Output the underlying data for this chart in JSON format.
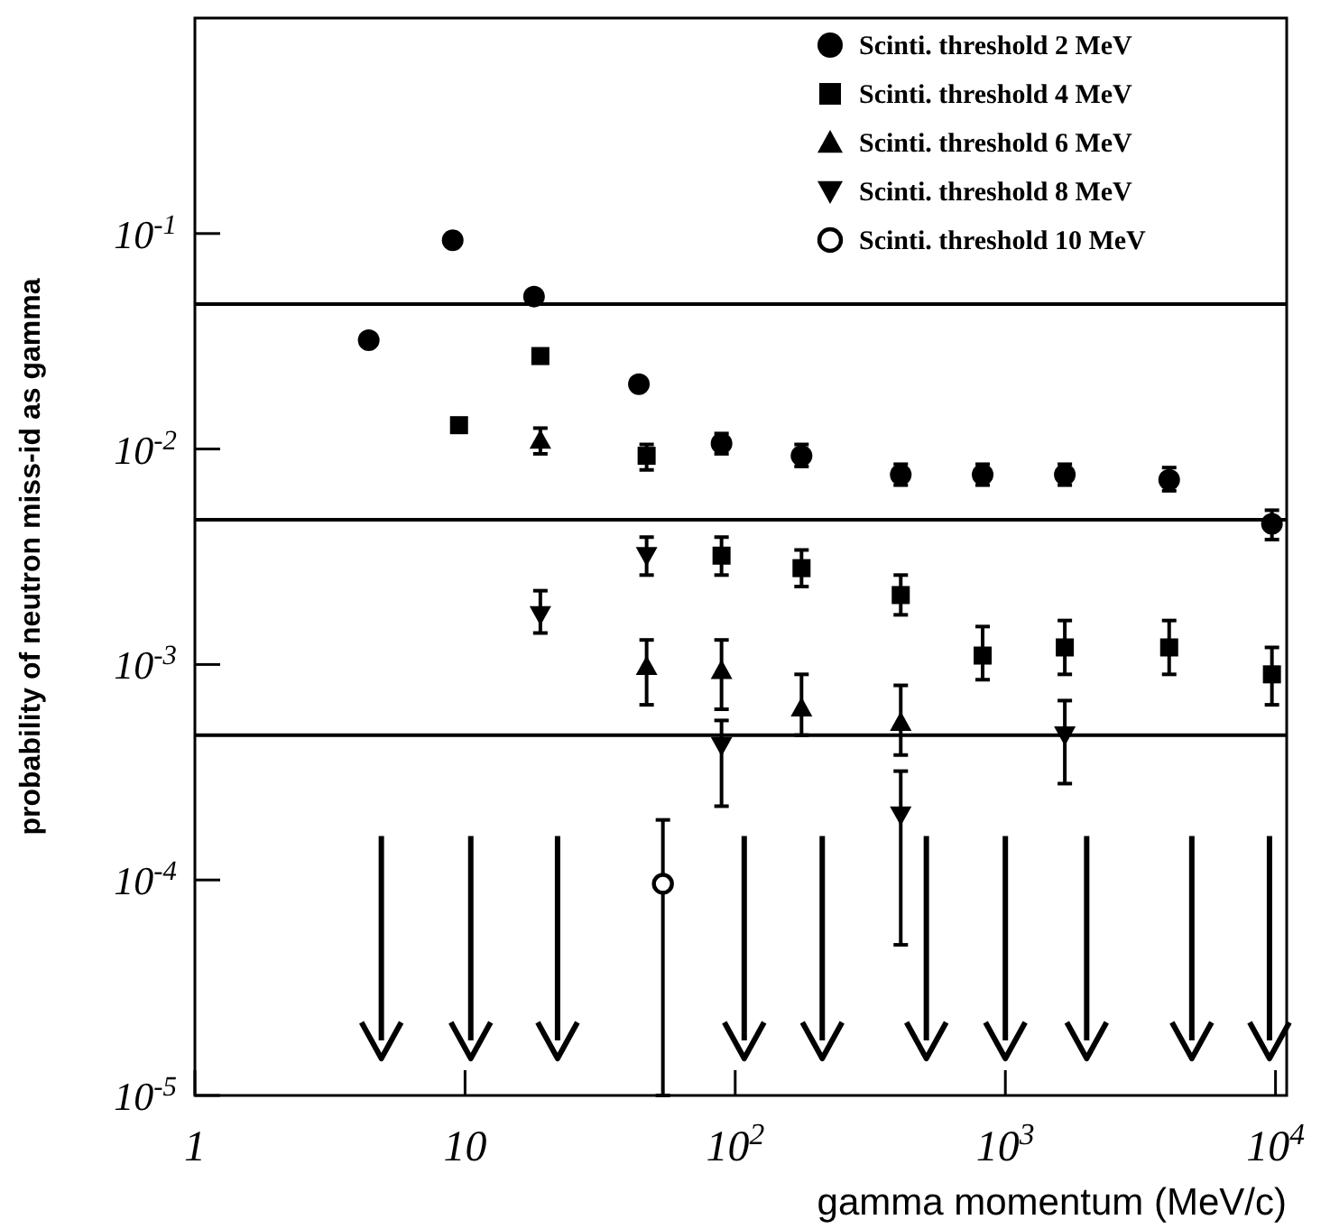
{
  "chart_data": {
    "type": "scatter",
    "xlabel": "gamma momentum (MeV/c)",
    "ylabel": "probability of neutron miss-id as gamma",
    "log": "xy",
    "xlim": [
      1,
      11000
    ],
    "ylim": [
      1e-05,
      1
    ],
    "xticks": [
      1,
      10,
      {
        "value": 100,
        "label": "10$^{2}$"
      },
      {
        "value": 1000,
        "label": "10$^{3}$"
      },
      {
        "value": 10000,
        "label": "10$^{4}$"
      }
    ],
    "yticks": [
      {
        "value": 1e-05,
        "label": "10$^{-5}$"
      },
      {
        "value": 0.0001,
        "label": "10$^{-4}$"
      },
      {
        "value": 0.001,
        "label": "10$^{-3}$"
      },
      {
        "value": 0.01,
        "label": "10$^{-2}$"
      },
      {
        "value": 0.1,
        "label": "10$^{-1}$"
      }
    ],
    "legend": "top right",
    "ref_lines": [
      {
        "axis": "y",
        "value": 0.047,
        "color": "#000000"
      },
      {
        "axis": "y",
        "value": 0.0047,
        "color": "#000000"
      },
      {
        "axis": "y",
        "value": 0.00047,
        "color": "#000000"
      }
    ],
    "series": [
      {
        "name": "Scinti. threshold 2 MeV",
        "color": "#000000",
        "marker": "circle",
        "x": [
          4.4,
          9,
          18,
          44,
          89,
          176,
          410,
          824,
          1660,
          4040,
          9700
        ],
        "values": [
          0.032,
          0.093,
          0.051,
          0.02,
          0.0106,
          0.0093,
          0.0076,
          0.0076,
          0.0076,
          0.0072,
          0.0045
        ],
        "errors": [
          null,
          null,
          null,
          null,
          [
            0.0095,
            0.0118
          ],
          [
            0.0083,
            0.0105
          ],
          [
            0.0068,
            0.0085
          ],
          [
            0.0068,
            0.0085
          ],
          [
            0.0068,
            0.0085
          ],
          [
            0.0064,
            0.0082
          ],
          [
            0.0038,
            0.0052
          ]
        ]
      },
      {
        "name": "Scinti. threshold 4 MeV",
        "color": "#000000",
        "marker": "square",
        "x": [
          9.5,
          19,
          47,
          89,
          176,
          410,
          824,
          1660,
          4040,
          9700
        ],
        "values": [
          0.0129,
          0.027,
          0.0093,
          0.0032,
          0.0028,
          0.0021,
          0.0011,
          0.0012,
          0.0012,
          0.0009
        ],
        "errors": [
          null,
          null,
          [
            0.008,
            0.0105
          ],
          [
            0.0026,
            0.0039
          ],
          [
            0.0023,
            0.0034
          ],
          [
            0.0017,
            0.0026
          ],
          [
            0.00085,
            0.0015
          ],
          [
            0.0009,
            0.0016
          ],
          [
            0.0009,
            0.0016
          ],
          [
            0.00065,
            0.0012
          ]
        ]
      },
      {
        "name": "Scinti. threshold 6 MeV",
        "color": "#000000",
        "marker": "triangle",
        "x": [
          19,
          47,
          89,
          176,
          410
        ],
        "values": [
          0.011,
          0.00098,
          0.00094,
          0.00063,
          0.00054
        ],
        "errors": [
          [
            0.0095,
            0.0125
          ],
          [
            0.00065,
            0.0013
          ],
          [
            0.00062,
            0.0013
          ],
          [
            0.00047,
            0.0009
          ],
          [
            0.00038,
            0.0008
          ]
        ]
      },
      {
        "name": "Scinti. threshold 8 MeV",
        "color": "#000000",
        "marker": "triangle-down",
        "x": [
          19,
          47,
          89,
          410,
          1660
        ],
        "values": [
          0.0017,
          0.0032,
          0.00042,
          0.0002,
          0.00047
        ],
        "errors": [
          [
            0.0014,
            0.0022
          ],
          [
            0.0026,
            0.0039
          ],
          [
            0.00022,
            0.00055
          ],
          [
            5e-05,
            0.00032
          ],
          [
            0.00028,
            0.00068
          ]
        ]
      },
      {
        "name": "Scinti. threshold 10 MeV",
        "color": "#000000",
        "marker": "circle-open",
        "x": [
          54
        ],
        "values": [
          9.6e-05
        ],
        "errors": [
          [
            1e-05,
            0.00019
          ]
        ]
      },
      {
        "color": "#000000",
        "marker": "cross",
        "x": [
          4.9,
          10.5,
          210,
          2000,
          4900
        ],
        "values": [
          1.8e-05,
          1.8e-05,
          1.8e-05,
          1.8e-05,
          1.8e-05
        ],
        "errors": [
          [
            1.8e-05,
            0.00016
          ],
          [
            1.8e-05,
            0.00016
          ],
          [
            1.8e-05,
            0.00016
          ],
          [
            1.8e-05,
            0.00016
          ],
          [
            1.8e-05,
            0.00016
          ]
        ]
      },
      {
        "color": "#000000",
        "marker": "cross",
        "x": [
          22,
          108,
          510,
          1000,
          9500
        ],
        "values": [
          1.8e-05,
          1.8e-05,
          1.8e-05,
          1.8e-05,
          1.8e-05
        ],
        "errors": [
          [
            1.8e-05,
            0.00016
          ],
          [
            1.8e-05,
            0.00016
          ],
          [
            1.8e-05,
            0.00016
          ],
          [
            1.8e-05,
            0.00016
          ],
          [
            1.8e-05,
            0.00016
          ]
        ]
      }
    ]
  }
}
